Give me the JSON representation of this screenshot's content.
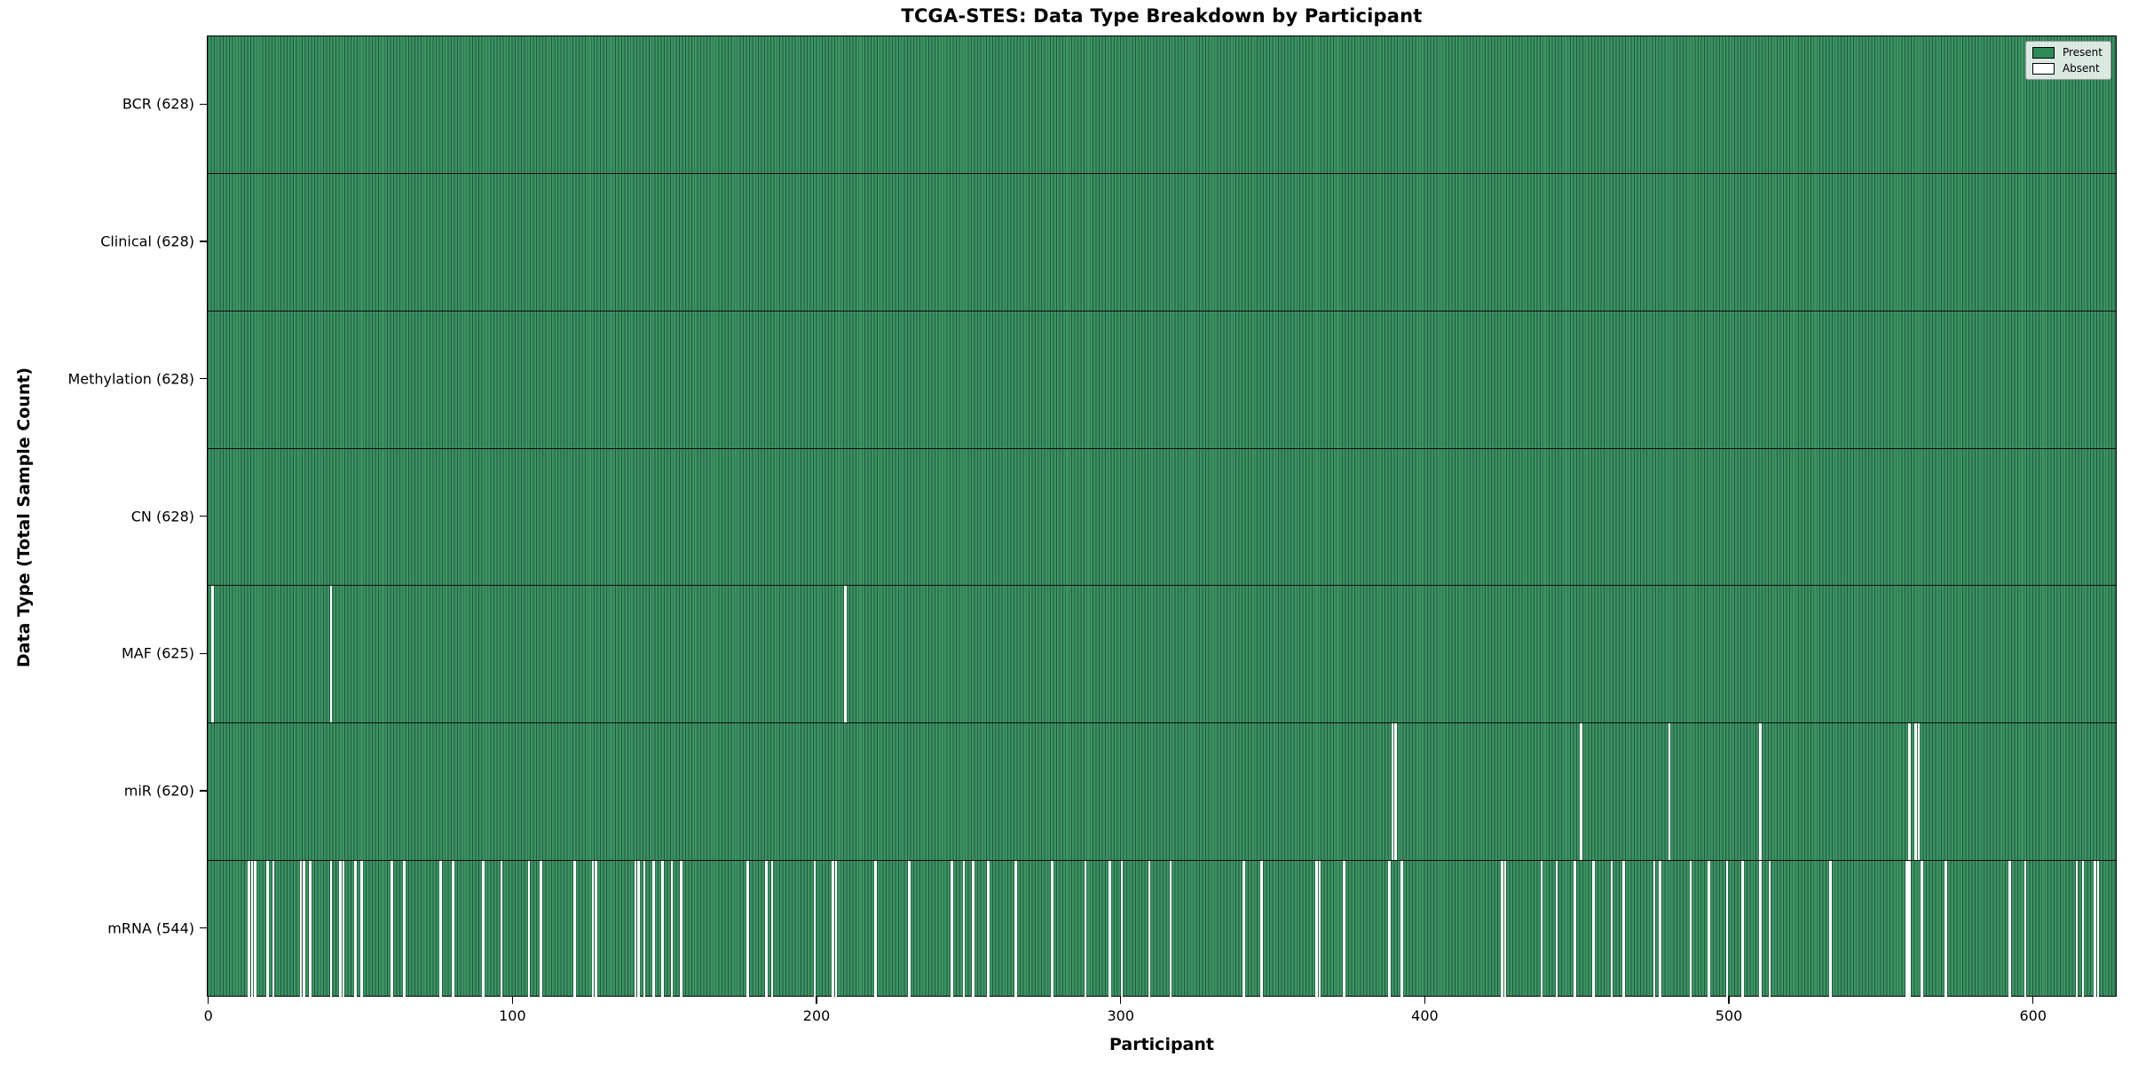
{
  "chart_data": {
    "type": "heatmap",
    "title": "TCGA-STES: Data Type Breakdown by Participant",
    "xlabel": "Participant",
    "ylabel": "Data Type (Total Sample Count)",
    "n_participants": 628,
    "x_ticks": [
      0,
      100,
      200,
      300,
      400,
      500,
      600
    ],
    "legend_position": "upper right",
    "grid": false,
    "legend": [
      {
        "label": "Present",
        "color": "#2e8b57"
      },
      {
        "label": "Absent",
        "color": "#ffffff"
      }
    ],
    "colors": {
      "present_fill": "#3d9264",
      "bar_edge": "#1e5a3c",
      "absent": "#ffffff",
      "separator": "#0d0d0d"
    },
    "rows": [
      {
        "label": "BCR (628)",
        "data_type": "BCR",
        "total": 628,
        "absent": []
      },
      {
        "label": "Clinical (628)",
        "data_type": "Clinical",
        "total": 628,
        "absent": []
      },
      {
        "label": "Methylation (628)",
        "data_type": "Methylation",
        "total": 628,
        "absent": []
      },
      {
        "label": "CN (628)",
        "data_type": "CN",
        "total": 628,
        "absent": []
      },
      {
        "label": "MAF (625)",
        "data_type": "MAF",
        "total": 625,
        "absent": [
          1,
          40,
          209
        ]
      },
      {
        "label": "miR (620)",
        "data_type": "miR",
        "total": 620,
        "absent": [
          389,
          390,
          451,
          480,
          510,
          559,
          561,
          562
        ]
      },
      {
        "label": "mRNA (544)",
        "data_type": "mRNA",
        "total": 544,
        "absent": [
          13,
          14,
          15,
          19,
          21,
          30,
          31,
          33,
          40,
          43,
          44,
          48,
          50,
          60,
          64,
          76,
          80,
          90,
          96,
          105,
          109,
          120,
          126,
          127,
          140,
          141,
          143,
          146,
          149,
          152,
          155,
          177,
          183,
          185,
          199,
          205,
          206,
          219,
          230,
          244,
          248,
          251,
          256,
          265,
          277,
          288,
          296,
          300,
          309,
          316,
          340,
          346,
          364,
          365,
          373,
          388,
          392,
          425,
          426,
          438,
          443,
          449,
          455,
          461,
          465,
          475,
          477,
          487,
          493,
          499,
          504,
          510,
          513,
          533,
          558,
          559,
          563,
          571,
          592,
          597,
          614,
          616,
          620,
          621
        ]
      }
    ]
  }
}
